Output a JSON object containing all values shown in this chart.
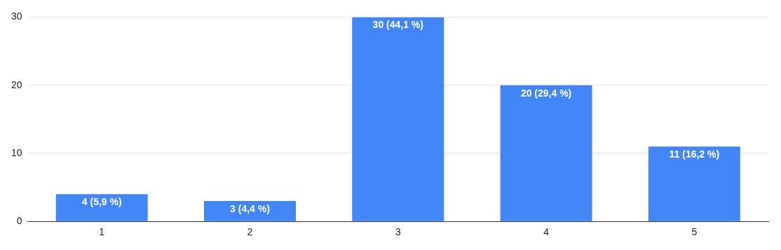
{
  "chart_data": {
    "type": "bar",
    "categories": [
      "1",
      "2",
      "3",
      "4",
      "5"
    ],
    "values": [
      4,
      3,
      30,
      20,
      11
    ],
    "value_labels": [
      "4 (5,9 %)",
      "3 (4,4 %)",
      "30 (44,1 %)",
      "20 (29,4 %)",
      "11 (16,2 %)"
    ],
    "color": "#4285f4",
    "ylim": [
      0,
      30
    ],
    "yticks": [
      0,
      10,
      20,
      30
    ],
    "grid": "y",
    "legend": false
  }
}
